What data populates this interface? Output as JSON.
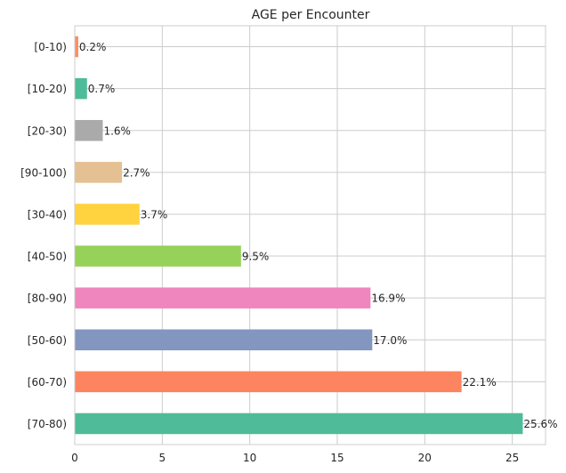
{
  "chart_data": {
    "type": "bar",
    "orientation": "horizontal",
    "title": "AGE per Encounter",
    "xlabel": "",
    "ylabel": "",
    "categories": [
      "[0-10)",
      "[10-20)",
      "[20-30)",
      "[90-100)",
      "[30-40)",
      "[40-50)",
      "[80-90)",
      "[50-60)",
      "[60-70)",
      "[70-80)"
    ],
    "values": [
      0.2,
      0.7,
      1.6,
      2.7,
      3.7,
      9.5,
      16.9,
      17.0,
      22.1,
      25.6
    ],
    "data_labels": [
      "0.2%",
      "0.7%",
      "1.6%",
      "2.7%",
      "3.7%",
      "9.5%",
      "16.9%",
      "17.0%",
      "22.1%",
      "25.6%"
    ],
    "colors": [
      "#fc8d62",
      "#4fbb99",
      "#aaaaaa",
      "#e5c093",
      "#ffd23f",
      "#96d15a",
      "#ef86bd",
      "#8296c0",
      "#fc8460",
      "#4fbb99"
    ],
    "xlim": [
      0,
      26.9
    ],
    "xticks": [
      0,
      5,
      10,
      15,
      20,
      25
    ],
    "grid": true,
    "legend": "none"
  }
}
